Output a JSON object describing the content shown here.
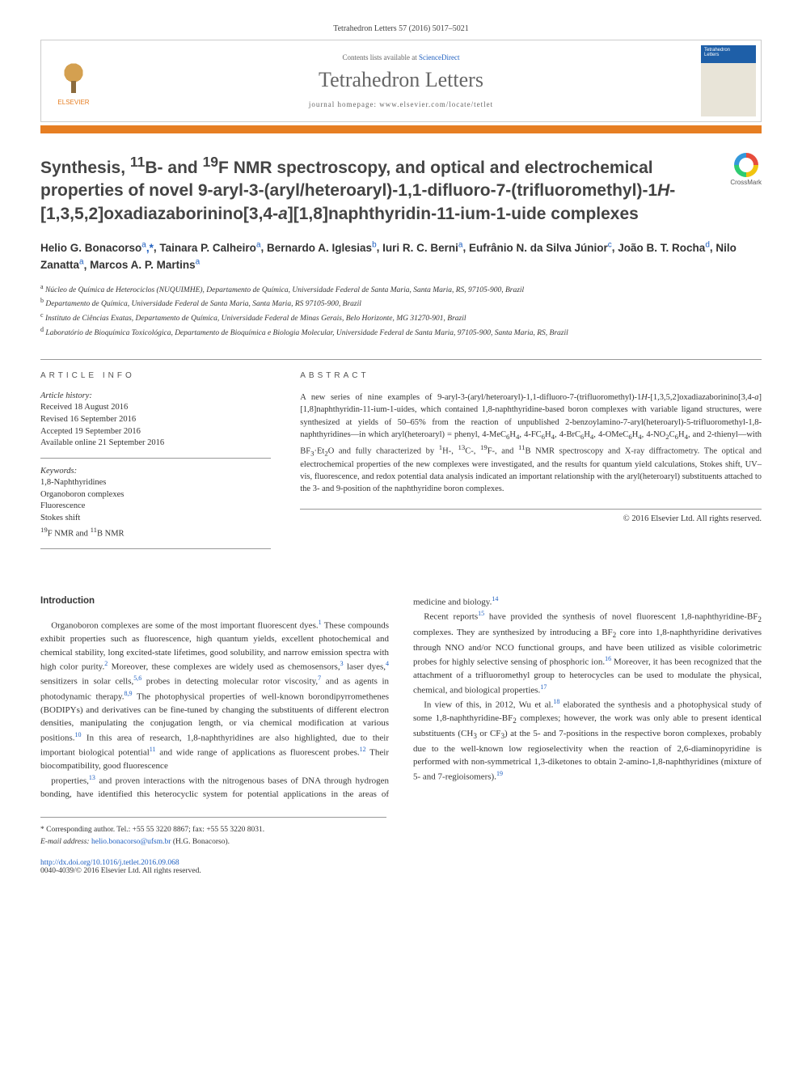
{
  "citation": "Tetrahedron Letters 57 (2016) 5017–5021",
  "sciencedirect_label": "ScienceDirect",
  "contents_prefix": "Contents lists available at ",
  "journal_name": "Tetrahedron Letters",
  "homepage_prefix": "journal homepage: ",
  "homepage_url": "www.elsevier.com/locate/tetlet",
  "elsevier_label": "ELSEVIER",
  "crossmark_label": "CrossMark",
  "title_html": "Synthesis, <sup>11</sup>B- and <sup>19</sup>F NMR spectroscopy, and optical and electrochemical properties of novel 9-aryl-3-(aryl/heteroaryl)-1,1-difluoro-7-(trifluoromethyl)-1<i>H</i>-[1,3,5,2]oxadiazaborinino[3,4-<i>a</i>][1,8]naphthyridin-11-ium-1-uide complexes",
  "authors": [
    {
      "name": "Helio G. Bonacorso",
      "affil": "a",
      "corr": true
    },
    {
      "name": "Tainara P. Calheiro",
      "affil": "a"
    },
    {
      "name": "Bernardo A. Iglesias",
      "affil": "b"
    },
    {
      "name": "Iuri R. C. Berni",
      "affil": "a"
    },
    {
      "name": "Eufrânio N. da Silva Júnior",
      "affil": "c"
    },
    {
      "name": "João B. T. Rocha",
      "affil": "d"
    },
    {
      "name": "Nilo Zanatta",
      "affil": "a"
    },
    {
      "name": "Marcos A. P. Martins",
      "affil": "a"
    }
  ],
  "affiliations": [
    {
      "mark": "a",
      "text": "Núcleo de Química de Heterociclos (NUQUIMHE), Departamento de Química, Universidade Federal de Santa Maria, Santa Maria, RS, 97105-900, Brazil"
    },
    {
      "mark": "b",
      "text": "Departamento de Química, Universidade Federal de Santa Maria, Santa Maria, RS 97105-900, Brazil"
    },
    {
      "mark": "c",
      "text": "Instituto de Ciências Exatas, Departamento de Química, Universidade Federal de Minas Gerais, Belo Horizonte, MG 31270-901, Brazil"
    },
    {
      "mark": "d",
      "text": "Laboratório de Bioquímica Toxicológica, Departamento de Bioquímica e Biologia Molecular, Universidade Federal de Santa Maria, 97105-900, Santa Maria, RS, Brazil"
    }
  ],
  "article_info_heading": "ARTICLE INFO",
  "abstract_heading": "ABSTRACT",
  "history_label": "Article history:",
  "history": [
    "Received 18 August 2016",
    "Revised 16 September 2016",
    "Accepted 19 September 2016",
    "Available online 21 September 2016"
  ],
  "keywords_label": "Keywords:",
  "keywords": [
    "1,8-Naphthyridines",
    "Organoboron complexes",
    "Fluorescence",
    "Stokes shift",
    "<sup>19</sup>F NMR and <sup>11</sup>B NMR"
  ],
  "abstract_html": "A new series of nine examples of 9-aryl-3-(aryl/heteroaryl)-1,1-difluoro-7-(trifluoromethyl)-1<i>H</i>-[1,3,5,2]oxadiazaborinino[3,4-<i>a</i>][1,8]naphthyridin-11-ium-1-uides, which contained 1,8-naphthyridine-based boron complexes with variable ligand structures, were synthesized at yields of 50–65% from the reaction of unpublished 2-benzoylamino-7-aryl(heteroaryl)-5-trifluoromethyl-1,8-naphthyridines—in which aryl(heteroaryl) = phenyl, 4-MeC<sub>6</sub>H<sub>4</sub>, 4-FC<sub>6</sub>H<sub>4</sub>, 4-BrC<sub>6</sub>H<sub>4</sub>, 4-OMeC<sub>6</sub>H<sub>4</sub>, 4-NO<sub>2</sub>C<sub>6</sub>H<sub>4</sub>, and 2-thienyl—with BF<sub>3</sub>·Et<sub>2</sub>O and fully characterized by <sup>1</sup>H-, <sup>13</sup>C-, <sup>19</sup>F-, and <sup>11</sup>B NMR spectroscopy and X-ray diffractometry. The optical and electrochemical properties of the new complexes were investigated, and the results for quantum yield calculations, Stokes shift, UV–vis, fluorescence, and redox potential data analysis indicated an important relationship with the aryl(heteroaryl) substituents attached to the 3- and 9-position of the naphthyridine boron complexes.",
  "copyright": "© 2016 Elsevier Ltd. All rights reserved.",
  "intro_heading": "Introduction",
  "body_paragraphs": [
    "Organoboron complexes are some of the most important fluorescent dyes.<sup class=\"ref-sup\">1</sup> These compounds exhibit properties such as fluorescence, high quantum yields, excellent photochemical and chemical stability, long excited-state lifetimes, good solubility, and narrow emission spectra with high color purity.<sup class=\"ref-sup\">2</sup> Moreover, these complexes are widely used as chemosensors,<sup class=\"ref-sup\">3</sup> laser dyes,<sup class=\"ref-sup\">4</sup> sensitizers in solar cells,<sup class=\"ref-sup\">5,6</sup> probes in detecting molecular rotor viscosity,<sup class=\"ref-sup\">7</sup> and as agents in photodynamic therapy.<sup class=\"ref-sup\">8,9</sup> The photophysical properties of well-known borondipyrromethenes (BODIPYs) and derivatives can be fine-tuned by changing the substituents of different electron densities, manipulating the conjugation length, or via chemical modification at various positions.<sup class=\"ref-sup\">10</sup> In this area of research, 1,8-naphthyridines are also highlighted, due to their important biological potential<sup class=\"ref-sup\">11</sup> and wide range of applications as fluorescent probes.<sup class=\"ref-sup\">12</sup> Their biocompatibility, good fluorescence",
    "properties,<sup class=\"ref-sup\">13</sup> and proven interactions with the nitrogenous bases of DNA through hydrogen bonding, have identified this heterocyclic system for potential applications in the areas of medicine and biology.<sup class=\"ref-sup\">14</sup>",
    "Recent reports<sup class=\"ref-sup\">15</sup> have provided the synthesis of novel fluorescent 1,8-naphthyridine-BF<sub>2</sub> complexes. They are synthesized by introducing a BF<sub>2</sub> core into 1,8-naphthyridine derivatives through NNO and/or NCO functional groups, and have been utilized as visible colorimetric probes for highly selective sensing of phosphoric ion.<sup class=\"ref-sup\">16</sup> Moreover, it has been recognized that the attachment of a trifluoromethyl group to heterocycles can be used to modulate the physical, chemical, and biological properties.<sup class=\"ref-sup\">17</sup>",
    "In view of this, in 2012, Wu et al.<sup class=\"ref-sup\">18</sup> elaborated the synthesis and a photophysical study of some 1,8-naphthyridine-BF<sub>2</sub> complexes; however, the work was only able to present identical substituents (CH<sub>3</sub> or CF<sub>3</sub>) at the 5- and 7-positions in the respective boron complexes, probably due to the well-known low regioselectivity when the reaction of 2,6-diaminopyridine is performed with non-symmetrical 1,3-diketones to obtain 2-amino-1,8-naphthyridines (mixture of 5- and 7-regioisomers).<sup class=\"ref-sup\">19</sup>"
  ],
  "corr_note": "* Corresponding author. Tel.: +55 55 3220 8867; fax: +55 55 3220 8031.",
  "email_label": "E-mail address:",
  "email": "helio.bonacorso@ufsm.br",
  "email_suffix": "(H.G. Bonacorso).",
  "doi_url": "http://dx.doi.org/10.1016/j.tetlet.2016.09.068",
  "issn_line": "0040-4039/© 2016 Elsevier Ltd. All rights reserved.",
  "colors": {
    "orange": "#e67e22",
    "link": "#2060c0",
    "text": "#333333",
    "border": "#999999"
  }
}
